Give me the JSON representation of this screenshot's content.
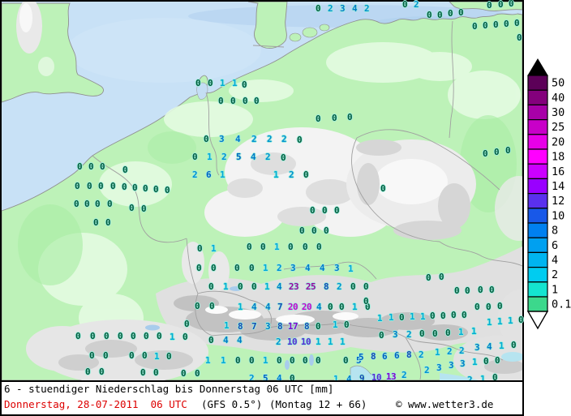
{
  "caption": {
    "title": "6 - stuendiger Niederschlag bis Donnerstag 06 UTC [mm]",
    "valid": "Donnerstag, 28-07-2011  06 UTC",
    "model": "(GFS 0.5°)",
    "run": "(Montag 12 + 66)",
    "credit": "© www.wetter3.de",
    "valid_color": "#DD0000"
  },
  "colorbar": {
    "labels_top_to_bottom": [
      "50",
      "40",
      "30",
      "25",
      "20",
      "18",
      "16",
      "14",
      "12",
      "10",
      "8",
      "6",
      "4",
      "2",
      "1",
      "0.1"
    ],
    "colors_top_to_bottom": [
      "#5C0058",
      "#84007C",
      "#A800A8",
      "#C800C8",
      "#E800E8",
      "#FF00FF",
      "#CC00FF",
      "#9900FF",
      "#5A30EE",
      "#1858E8",
      "#0080F0",
      "#00A0F0",
      "#00B4F0",
      "#00CCF0",
      "#14E4D0",
      "#3CD88C"
    ],
    "top_arrow_color": "#000000",
    "bottom_arrow_color": "#FFFFFF"
  },
  "map": {
    "sea_color": "#C8E1F6",
    "land_color": "#BDF2B8",
    "value_colors": {
      "z": "#005A3C",
      "a": "#00AAD4",
      "b": "#0090D0",
      "c": "#0078C8",
      "d": "#0060C0",
      "e": "#1448B4",
      "f": "#5A28D2",
      "g": "#8800CC",
      "h": "#CC00CC",
      "i": "#A000A0"
    },
    "stations": [
      [
        "0",
        390,
        9,
        "z"
      ],
      [
        "2",
        405,
        9,
        "b"
      ],
      [
        "3",
        420,
        9,
        "c"
      ],
      [
        "4",
        435,
        9,
        "c"
      ],
      [
        "2",
        450,
        9,
        "b"
      ],
      [
        "0",
        497,
        4,
        "z"
      ],
      [
        "2",
        511,
        4,
        "b"
      ],
      [
        "0",
        527,
        17,
        "z"
      ],
      [
        "0",
        540,
        17,
        "z"
      ],
      [
        "0",
        553,
        15,
        "z"
      ],
      [
        "0",
        566,
        14,
        "z"
      ],
      [
        "0",
        601,
        5,
        "z"
      ],
      [
        "0",
        615,
        4,
        "z"
      ],
      [
        "0",
        628,
        3,
        "z"
      ],
      [
        "0",
        583,
        31,
        "z"
      ],
      [
        "0",
        596,
        30,
        "z"
      ],
      [
        "0",
        609,
        29,
        "z"
      ],
      [
        "0",
        622,
        28,
        "z"
      ],
      [
        "0",
        635,
        27,
        "z"
      ],
      [
        "0",
        638,
        45,
        "z"
      ],
      [
        "0",
        242,
        101,
        "z"
      ],
      [
        "0",
        257,
        101,
        "z"
      ],
      [
        "1",
        272,
        101,
        "a"
      ],
      [
        "1",
        287,
        101,
        "a"
      ],
      [
        "0",
        299,
        103,
        "z"
      ],
      [
        "0",
        270,
        123,
        "z"
      ],
      [
        "0",
        285,
        123,
        "z"
      ],
      [
        "0",
        300,
        123,
        "z"
      ],
      [
        "0",
        314,
        123,
        "z"
      ],
      [
        "0",
        390,
        145,
        "z"
      ],
      [
        "0",
        410,
        144,
        "z"
      ],
      [
        "0",
        429,
        143,
        "z"
      ],
      [
        "0",
        252,
        170,
        "z"
      ],
      [
        "3",
        271,
        170,
        "c"
      ],
      [
        "4",
        291,
        170,
        "c"
      ],
      [
        "2",
        311,
        170,
        "b"
      ],
      [
        "2",
        330,
        170,
        "b"
      ],
      [
        "2",
        348,
        170,
        "b"
      ],
      [
        "0",
        367,
        171,
        "z"
      ],
      [
        "0",
        238,
        192,
        "z"
      ],
      [
        "1",
        256,
        192,
        "a"
      ],
      [
        "2",
        274,
        192,
        "b"
      ],
      [
        "5",
        292,
        192,
        "d"
      ],
      [
        "4",
        310,
        192,
        "c"
      ],
      [
        "2",
        328,
        192,
        "b"
      ],
      [
        "0",
        347,
        193,
        "z"
      ],
      [
        "2",
        238,
        214,
        "b"
      ],
      [
        "6",
        255,
        214,
        "d"
      ],
      [
        "1",
        272,
        214,
        "a"
      ],
      [
        "1",
        338,
        214,
        "a"
      ],
      [
        "2",
        357,
        214,
        "b"
      ],
      [
        "0",
        375,
        214,
        "z"
      ],
      [
        "0",
        470,
        231,
        "z"
      ],
      [
        "0",
        383,
        258,
        "z"
      ],
      [
        "0",
        398,
        258,
        "z"
      ],
      [
        "0",
        413,
        258,
        "z"
      ],
      [
        "0",
        370,
        283,
        "z"
      ],
      [
        "0",
        385,
        283,
        "z"
      ],
      [
        "0",
        400,
        283,
        "z"
      ],
      [
        "0",
        96,
        204,
        "z"
      ],
      [
        "0",
        110,
        204,
        "z"
      ],
      [
        "0",
        124,
        204,
        "z"
      ],
      [
        "0",
        152,
        208,
        "z"
      ],
      [
        "0",
        93,
        228,
        "z"
      ],
      [
        "0",
        108,
        228,
        "z"
      ],
      [
        "0",
        122,
        228,
        "z"
      ],
      [
        "0",
        137,
        228,
        "z"
      ],
      [
        "0",
        151,
        229,
        "z"
      ],
      [
        "0",
        164,
        230,
        "z"
      ],
      [
        "0",
        177,
        231,
        "z"
      ],
      [
        "0",
        190,
        232,
        "z"
      ],
      [
        "0",
        204,
        233,
        "z"
      ],
      [
        "0",
        92,
        250,
        "z"
      ],
      [
        "0",
        105,
        250,
        "z"
      ],
      [
        "0",
        118,
        250,
        "z"
      ],
      [
        "0",
        133,
        250,
        "z"
      ],
      [
        "0",
        160,
        255,
        "z"
      ],
      [
        "0",
        175,
        256,
        "z"
      ],
      [
        "0",
        116,
        273,
        "z"
      ],
      [
        "0",
        131,
        273,
        "z"
      ],
      [
        "0",
        244,
        305,
        "z"
      ],
      [
        "1",
        261,
        305,
        "a"
      ],
      [
        "0",
        305,
        303,
        "z"
      ],
      [
        "0",
        322,
        303,
        "z"
      ],
      [
        "1",
        339,
        303,
        "a"
      ],
      [
        "0",
        356,
        303,
        "z"
      ],
      [
        "0",
        374,
        303,
        "z"
      ],
      [
        "0",
        391,
        303,
        "z"
      ],
      [
        "0",
        243,
        329,
        "z"
      ],
      [
        "0",
        261,
        329,
        "z"
      ],
      [
        "0",
        290,
        329,
        "z"
      ],
      [
        "0",
        308,
        329,
        "z"
      ],
      [
        "1",
        325,
        329,
        "a"
      ],
      [
        "2",
        342,
        329,
        "b"
      ],
      [
        "3",
        359,
        329,
        "c"
      ],
      [
        "4",
        377,
        329,
        "c"
      ],
      [
        "4",
        395,
        329,
        "c"
      ],
      [
        "3",
        413,
        329,
        "c"
      ],
      [
        "1",
        430,
        330,
        "a"
      ],
      [
        "0",
        258,
        352,
        "z"
      ],
      [
        "1",
        276,
        352,
        "a"
      ],
      [
        "0",
        294,
        352,
        "z"
      ],
      [
        "0",
        311,
        352,
        "z"
      ],
      [
        "1",
        327,
        352,
        "a"
      ],
      [
        "4",
        342,
        352,
        "c"
      ],
      [
        "23",
        360,
        352,
        "i"
      ],
      [
        "25",
        381,
        352,
        "i"
      ],
      [
        "8",
        400,
        352,
        "e"
      ],
      [
        "2",
        416,
        352,
        "b"
      ],
      [
        "0",
        433,
        352,
        "z"
      ],
      [
        "0",
        449,
        352,
        "z"
      ],
      [
        "0",
        241,
        376,
        "z"
      ],
      [
        "0",
        259,
        376,
        "z"
      ],
      [
        "1",
        294,
        377,
        "a"
      ],
      [
        "4",
        311,
        377,
        "c"
      ],
      [
        "4",
        328,
        377,
        "c"
      ],
      [
        "7",
        343,
        377,
        "e"
      ],
      [
        "20",
        359,
        377,
        "h"
      ],
      [
        "20",
        376,
        377,
        "h"
      ],
      [
        "4",
        391,
        377,
        "c"
      ],
      [
        "0",
        405,
        377,
        "z"
      ],
      [
        "0",
        419,
        377,
        "z"
      ],
      [
        "1",
        435,
        377,
        "a"
      ],
      [
        "0",
        451,
        377,
        "z"
      ],
      [
        "0",
        228,
        398,
        "z"
      ],
      [
        "1",
        277,
        400,
        "a"
      ],
      [
        "8",
        294,
        401,
        "e"
      ],
      [
        "7",
        311,
        401,
        "e"
      ],
      [
        "3",
        328,
        401,
        "c"
      ],
      [
        "8",
        343,
        401,
        "e"
      ],
      [
        "17",
        359,
        401,
        "g"
      ],
      [
        "8",
        376,
        401,
        "e"
      ],
      [
        "0",
        390,
        401,
        "z"
      ],
      [
        "1",
        411,
        399,
        "a"
      ],
      [
        "0",
        425,
        399,
        "z"
      ],
      [
        "0",
        94,
        413,
        "z"
      ],
      [
        "0",
        112,
        413,
        "z"
      ],
      [
        "0",
        129,
        413,
        "z"
      ],
      [
        "0",
        146,
        413,
        "z"
      ],
      [
        "0",
        162,
        413,
        "z"
      ],
      [
        "0",
        178,
        413,
        "z"
      ],
      [
        "0",
        194,
        413,
        "z"
      ],
      [
        "1",
        210,
        414,
        "a"
      ],
      [
        "0",
        226,
        414,
        "z"
      ],
      [
        "0",
        258,
        418,
        "z"
      ],
      [
        "4",
        276,
        418,
        "c"
      ],
      [
        "4",
        293,
        418,
        "c"
      ],
      [
        "2",
        341,
        420,
        "b"
      ],
      [
        "10",
        358,
        420,
        "f"
      ],
      [
        "10",
        375,
        420,
        "f"
      ],
      [
        "1",
        390,
        420,
        "a"
      ],
      [
        "1",
        405,
        420,
        "a"
      ],
      [
        "1",
        420,
        420,
        "a"
      ],
      [
        "0",
        111,
        437,
        "z"
      ],
      [
        "0",
        128,
        437,
        "z"
      ],
      [
        "0",
        160,
        437,
        "z"
      ],
      [
        "0",
        176,
        437,
        "z"
      ],
      [
        "1",
        191,
        438,
        "a"
      ],
      [
        "0",
        206,
        438,
        "z"
      ],
      [
        "1",
        254,
        443,
        "a"
      ],
      [
        "1",
        273,
        443,
        "a"
      ],
      [
        "0",
        291,
        443,
        "z"
      ],
      [
        "0",
        308,
        443,
        "z"
      ],
      [
        "1",
        325,
        443,
        "a"
      ],
      [
        "0",
        342,
        443,
        "z"
      ],
      [
        "0",
        358,
        443,
        "z"
      ],
      [
        "0",
        374,
        443,
        "z"
      ],
      [
        "0",
        390,
        443,
        "z"
      ],
      [
        "0",
        424,
        443,
        "z"
      ],
      [
        "5",
        440,
        443,
        "d"
      ],
      [
        "0",
        106,
        457,
        "z"
      ],
      [
        "0",
        123,
        457,
        "z"
      ],
      [
        "0",
        174,
        458,
        "z"
      ],
      [
        "0",
        190,
        458,
        "z"
      ],
      [
        "0",
        224,
        459,
        "z"
      ],
      [
        "0",
        241,
        459,
        "z"
      ],
      [
        "2",
        308,
        465,
        "b"
      ],
      [
        "5",
        325,
        465,
        "d"
      ],
      [
        "4",
        342,
        465,
        "c"
      ],
      [
        "0",
        358,
        465,
        "z"
      ],
      [
        "1",
        412,
        466,
        "a"
      ],
      [
        "4",
        428,
        466,
        "c"
      ],
      [
        "9",
        444,
        465,
        "e"
      ],
      [
        "10",
        462,
        464,
        "f"
      ],
      [
        "13",
        480,
        463,
        "g"
      ],
      [
        "2",
        496,
        461,
        "b"
      ],
      [
        "0",
        526,
        341,
        "z"
      ],
      [
        "0",
        542,
        340,
        "z"
      ],
      [
        "0",
        561,
        357,
        "z"
      ],
      [
        "0",
        574,
        357,
        "z"
      ],
      [
        "0",
        590,
        356,
        "z"
      ],
      [
        "0",
        604,
        356,
        "z"
      ],
      [
        "0",
        449,
        370,
        "z"
      ],
      [
        "0",
        586,
        377,
        "z"
      ],
      [
        "0",
        600,
        377,
        "z"
      ],
      [
        "0",
        614,
        376,
        "z"
      ],
      [
        "0",
        596,
        188,
        "z"
      ],
      [
        "0",
        610,
        186,
        "z"
      ],
      [
        "0",
        624,
        184,
        "z"
      ],
      [
        "1",
        466,
        391,
        "a"
      ],
      [
        "1",
        480,
        390,
        "a"
      ],
      [
        "0",
        493,
        390,
        "z"
      ],
      [
        "1",
        506,
        389,
        "a"
      ],
      [
        "1",
        519,
        389,
        "a"
      ],
      [
        "0",
        531,
        388,
        "z"
      ],
      [
        "0",
        544,
        388,
        "z"
      ],
      [
        "0",
        557,
        387,
        "z"
      ],
      [
        "0",
        570,
        387,
        "z"
      ],
      [
        "1",
        601,
        396,
        "a"
      ],
      [
        "1",
        614,
        395,
        "a"
      ],
      [
        "1",
        627,
        394,
        "a"
      ],
      [
        "0",
        640,
        393,
        "z"
      ],
      [
        "0",
        468,
        412,
        "z"
      ],
      [
        "3",
        485,
        411,
        "c"
      ],
      [
        "2",
        502,
        411,
        "b"
      ],
      [
        "0",
        518,
        410,
        "z"
      ],
      [
        "0",
        534,
        410,
        "z"
      ],
      [
        "0",
        550,
        409,
        "z"
      ],
      [
        "1",
        566,
        408,
        "a"
      ],
      [
        "1",
        582,
        407,
        "a"
      ],
      [
        "3",
        586,
        427,
        "c"
      ],
      [
        "4",
        601,
        426,
        "c"
      ],
      [
        "1",
        616,
        425,
        "a"
      ],
      [
        "0",
        631,
        424,
        "z"
      ],
      [
        "1",
        537,
        433,
        "a"
      ],
      [
        "2",
        552,
        432,
        "b"
      ],
      [
        "2",
        567,
        431,
        "b"
      ],
      [
        "5",
        443,
        439,
        "d"
      ],
      [
        "8",
        458,
        438,
        "e"
      ],
      [
        "6",
        472,
        438,
        "d"
      ],
      [
        "6",
        487,
        437,
        "d"
      ],
      [
        "8",
        502,
        436,
        "e"
      ],
      [
        "2",
        517,
        436,
        "b"
      ],
      [
        "2",
        524,
        455,
        "b"
      ],
      [
        "3",
        539,
        452,
        "c"
      ],
      [
        "3",
        554,
        449,
        "c"
      ],
      [
        "3",
        568,
        447,
        "c"
      ],
      [
        "1",
        583,
        445,
        "a"
      ],
      [
        "0",
        597,
        444,
        "z"
      ],
      [
        "0",
        611,
        443,
        "z"
      ],
      [
        "2",
        577,
        467,
        "b"
      ],
      [
        "1",
        593,
        466,
        "a"
      ],
      [
        "0",
        608,
        464,
        "z"
      ]
    ]
  }
}
